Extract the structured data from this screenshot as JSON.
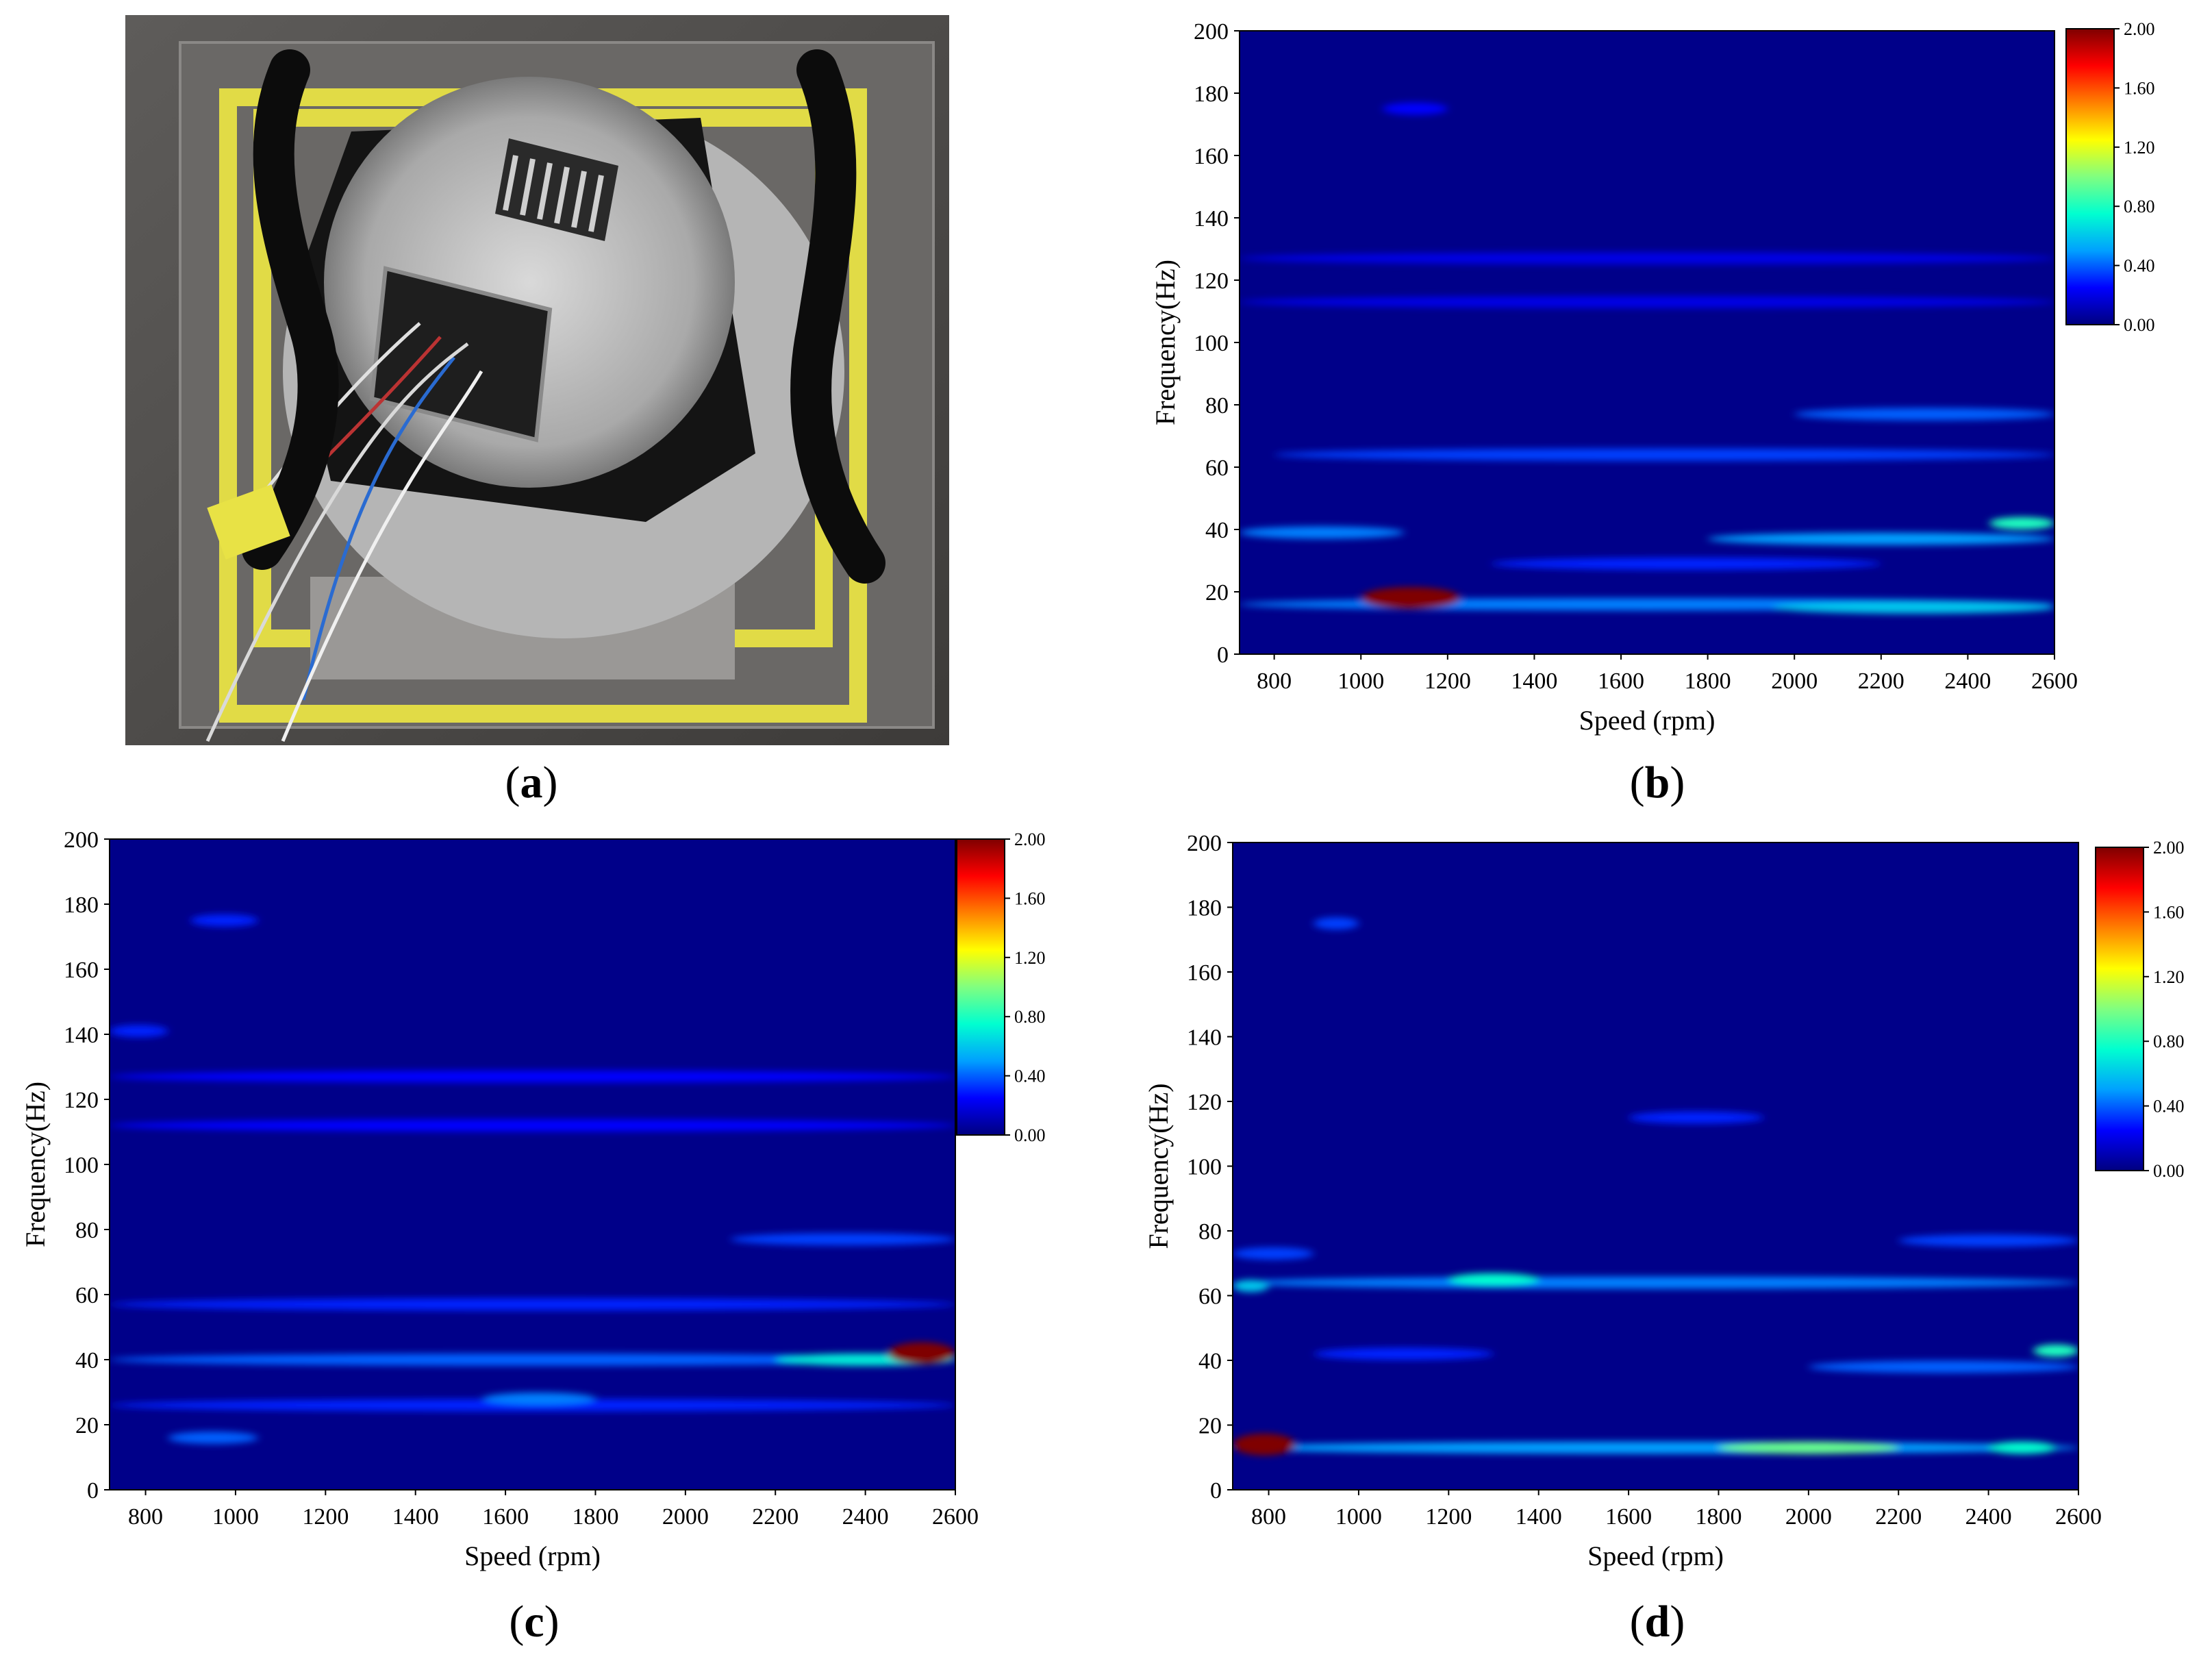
{
  "figure": {
    "panels": [
      {
        "id": "a",
        "label": "a",
        "kind": "photo"
      },
      {
        "id": "b",
        "label": "b",
        "kind": "heatmap"
      },
      {
        "id": "c",
        "label": "c",
        "kind": "heatmap"
      },
      {
        "id": "d",
        "label": "d",
        "kind": "heatmap"
      }
    ]
  },
  "colors": {
    "colormap": [
      "#00007f",
      "#0000ff",
      "#00a0ff",
      "#00ffd0",
      "#80ff80",
      "#ffff00",
      "#ff8000",
      "#ff0000",
      "#7f0000"
    ],
    "grid": "none",
    "background": "#ffffff"
  },
  "photo": {
    "subject": "fan motor mounted on test plate with yellow tape and black handles",
    "icons": [
      "photo-fan-motor"
    ]
  },
  "chart_data": [
    {
      "panel": "b",
      "type": "heatmap",
      "xlabel": "Speed (rpm)",
      "ylabel": "Frequency(Hz)",
      "xlim": [
        720,
        2600
      ],
      "ylim": [
        0,
        200
      ],
      "xticks": [
        800,
        1000,
        1200,
        1400,
        1600,
        1800,
        2000,
        2200,
        2400,
        2600
      ],
      "yticks": [
        0,
        20,
        40,
        60,
        80,
        100,
        120,
        140,
        160,
        180,
        200
      ],
      "colorbar": {
        "min": 0.0,
        "max": 2.0,
        "ticks": [
          "0.00",
          "0.40",
          "0.80",
          "1.20",
          "1.60",
          "2.00"
        ]
      },
      "features": [
        {
          "speed": [
            1000,
            1230
          ],
          "freq": 18,
          "value": 2.0
        },
        {
          "speed": [
            720,
            2600
          ],
          "freq": 16,
          "value": 0.45
        },
        {
          "speed": [
            1950,
            2600
          ],
          "freq": 15,
          "value": 0.6
        },
        {
          "speed": [
            720,
            1100
          ],
          "freq": 39,
          "value": 0.45
        },
        {
          "speed": [
            1800,
            2600
          ],
          "freq": 37,
          "value": 0.5
        },
        {
          "speed": [
            2450,
            2600
          ],
          "freq": 42,
          "value": 0.8
        },
        {
          "speed": [
            1300,
            2200
          ],
          "freq": 29,
          "value": 0.3
        },
        {
          "speed": [
            800,
            2600
          ],
          "freq": 64,
          "value": 0.35
        },
        {
          "speed": [
            2000,
            2600
          ],
          "freq": 77,
          "value": 0.4
        },
        {
          "speed": [
            720,
            2600
          ],
          "freq": 113,
          "value": 0.2
        },
        {
          "speed": [
            720,
            2600
          ],
          "freq": 127,
          "value": 0.2
        },
        {
          "speed": [
            1050,
            1200
          ],
          "freq": 175,
          "value": 0.25
        }
      ]
    },
    {
      "panel": "c",
      "type": "heatmap",
      "xlabel": "Speed (rpm)",
      "ylabel": "Frequency(Hz)",
      "xlim": [
        720,
        2600
      ],
      "ylim": [
        0,
        200
      ],
      "xticks": [
        800,
        1000,
        1200,
        1400,
        1600,
        1800,
        2000,
        2200,
        2400,
        2600
      ],
      "yticks": [
        0,
        20,
        40,
        60,
        80,
        100,
        120,
        140,
        160,
        180,
        200
      ],
      "colorbar": {
        "min": 0.0,
        "max": 2.0,
        "ticks": [
          "0.00",
          "0.40",
          "0.80",
          "1.20",
          "1.60",
          "2.00"
        ]
      },
      "features": [
        {
          "speed": [
            2450,
            2600
          ],
          "freq": 42,
          "value": 2.0
        },
        {
          "speed": [
            2200,
            2600
          ],
          "freq": 40,
          "value": 0.7
        },
        {
          "speed": [
            720,
            2600
          ],
          "freq": 40,
          "value": 0.4
        },
        {
          "speed": [
            1550,
            1800
          ],
          "freq": 28,
          "value": 0.45
        },
        {
          "speed": [
            850,
            1050
          ],
          "freq": 16,
          "value": 0.4
        },
        {
          "speed": [
            720,
            2600
          ],
          "freq": 26,
          "value": 0.3
        },
        {
          "speed": [
            720,
            2600
          ],
          "freq": 57,
          "value": 0.3
        },
        {
          "speed": [
            2100,
            2600
          ],
          "freq": 77,
          "value": 0.35
        },
        {
          "speed": [
            720,
            2600
          ],
          "freq": 112,
          "value": 0.25
        },
        {
          "speed": [
            720,
            2600
          ],
          "freq": 127,
          "value": 0.25
        },
        {
          "speed": [
            720,
            850
          ],
          "freq": 141,
          "value": 0.3
        },
        {
          "speed": [
            900,
            1050
          ],
          "freq": 175,
          "value": 0.3
        }
      ]
    },
    {
      "panel": "d",
      "type": "heatmap",
      "xlabel": "Speed (rpm)",
      "ylabel": "Frequency(Hz)",
      "xlim": [
        720,
        2600
      ],
      "ylim": [
        0,
        200
      ],
      "xticks": [
        800,
        1000,
        1200,
        1400,
        1600,
        1800,
        2000,
        2200,
        2400,
        2600
      ],
      "yticks": [
        0,
        20,
        40,
        60,
        80,
        100,
        120,
        140,
        160,
        180,
        200
      ],
      "colorbar": {
        "min": 0.0,
        "max": 2.0,
        "ticks": [
          "0.00",
          "0.40",
          "0.80",
          "1.20",
          "1.60",
          "2.00"
        ]
      },
      "features": [
        {
          "speed": [
            720,
            860
          ],
          "freq": 14,
          "value": 2.0
        },
        {
          "speed": [
            720,
            2600
          ],
          "freq": 13,
          "value": 0.5
        },
        {
          "speed": [
            1800,
            2200
          ],
          "freq": 13,
          "value": 0.95
        },
        {
          "speed": [
            2400,
            2550
          ],
          "freq": 13,
          "value": 0.75
        },
        {
          "speed": [
            720,
            2600
          ],
          "freq": 64,
          "value": 0.45
        },
        {
          "speed": [
            1200,
            1400
          ],
          "freq": 65,
          "value": 0.75
        },
        {
          "speed": [
            720,
            800
          ],
          "freq": 63,
          "value": 0.6
        },
        {
          "speed": [
            2500,
            2600
          ],
          "freq": 43,
          "value": 0.8
        },
        {
          "speed": [
            2000,
            2600
          ],
          "freq": 38,
          "value": 0.4
        },
        {
          "speed": [
            900,
            1300
          ],
          "freq": 42,
          "value": 0.3
        },
        {
          "speed": [
            2200,
            2600
          ],
          "freq": 77,
          "value": 0.35
        },
        {
          "speed": [
            1600,
            1900
          ],
          "freq": 115,
          "value": 0.3
        },
        {
          "speed": [
            900,
            1000
          ],
          "freq": 175,
          "value": 0.35
        },
        {
          "speed": [
            720,
            900
          ],
          "freq": 73,
          "value": 0.35
        }
      ]
    }
  ]
}
